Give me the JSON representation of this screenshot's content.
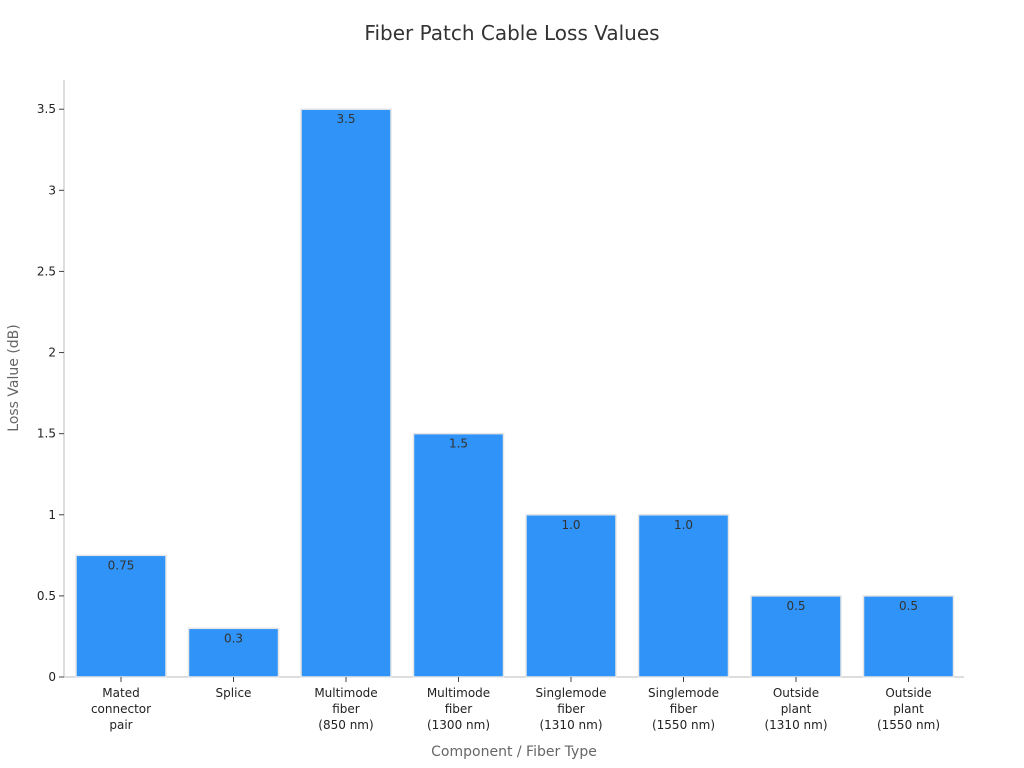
{
  "chart_data": {
    "type": "bar",
    "title": "Fiber Patch Cable Loss Values",
    "xlabel": "Component / Fiber Type",
    "ylabel": "Loss Value (dB)",
    "categories": [
      [
        "Mated",
        "connector",
        "pair"
      ],
      [
        "Splice"
      ],
      [
        "Multimode",
        "fiber",
        "(850 nm)"
      ],
      [
        "Multimode",
        "fiber",
        "(1300 nm)"
      ],
      [
        "Singlemode",
        "fiber",
        "(1310 nm)"
      ],
      [
        "Singlemode",
        "fiber",
        "(1550 nm)"
      ],
      [
        "Outside",
        "plant",
        "(1310 nm)"
      ],
      [
        "Outside",
        "plant",
        "(1550 nm)"
      ]
    ],
    "values": [
      0.75,
      0.3,
      3.5,
      1.5,
      1.0,
      1.0,
      0.5,
      0.5
    ],
    "data_labels": [
      "0.75",
      "0.3",
      "3.5",
      "1.5",
      "1.0",
      "1.0",
      "0.5",
      "0.5"
    ],
    "yticks": [
      0,
      0.5,
      1,
      1.5,
      2,
      2.5,
      3,
      3.5
    ],
    "ytick_labels": [
      "0",
      "0.5",
      "1",
      "1.5",
      "2",
      "2.5",
      "3",
      "3.5"
    ],
    "ylim": [
      0,
      3.68
    ],
    "grid": false,
    "legend": "none",
    "bar_color": "#2f93f8",
    "bar_edge_color": "#e6e6e6"
  }
}
